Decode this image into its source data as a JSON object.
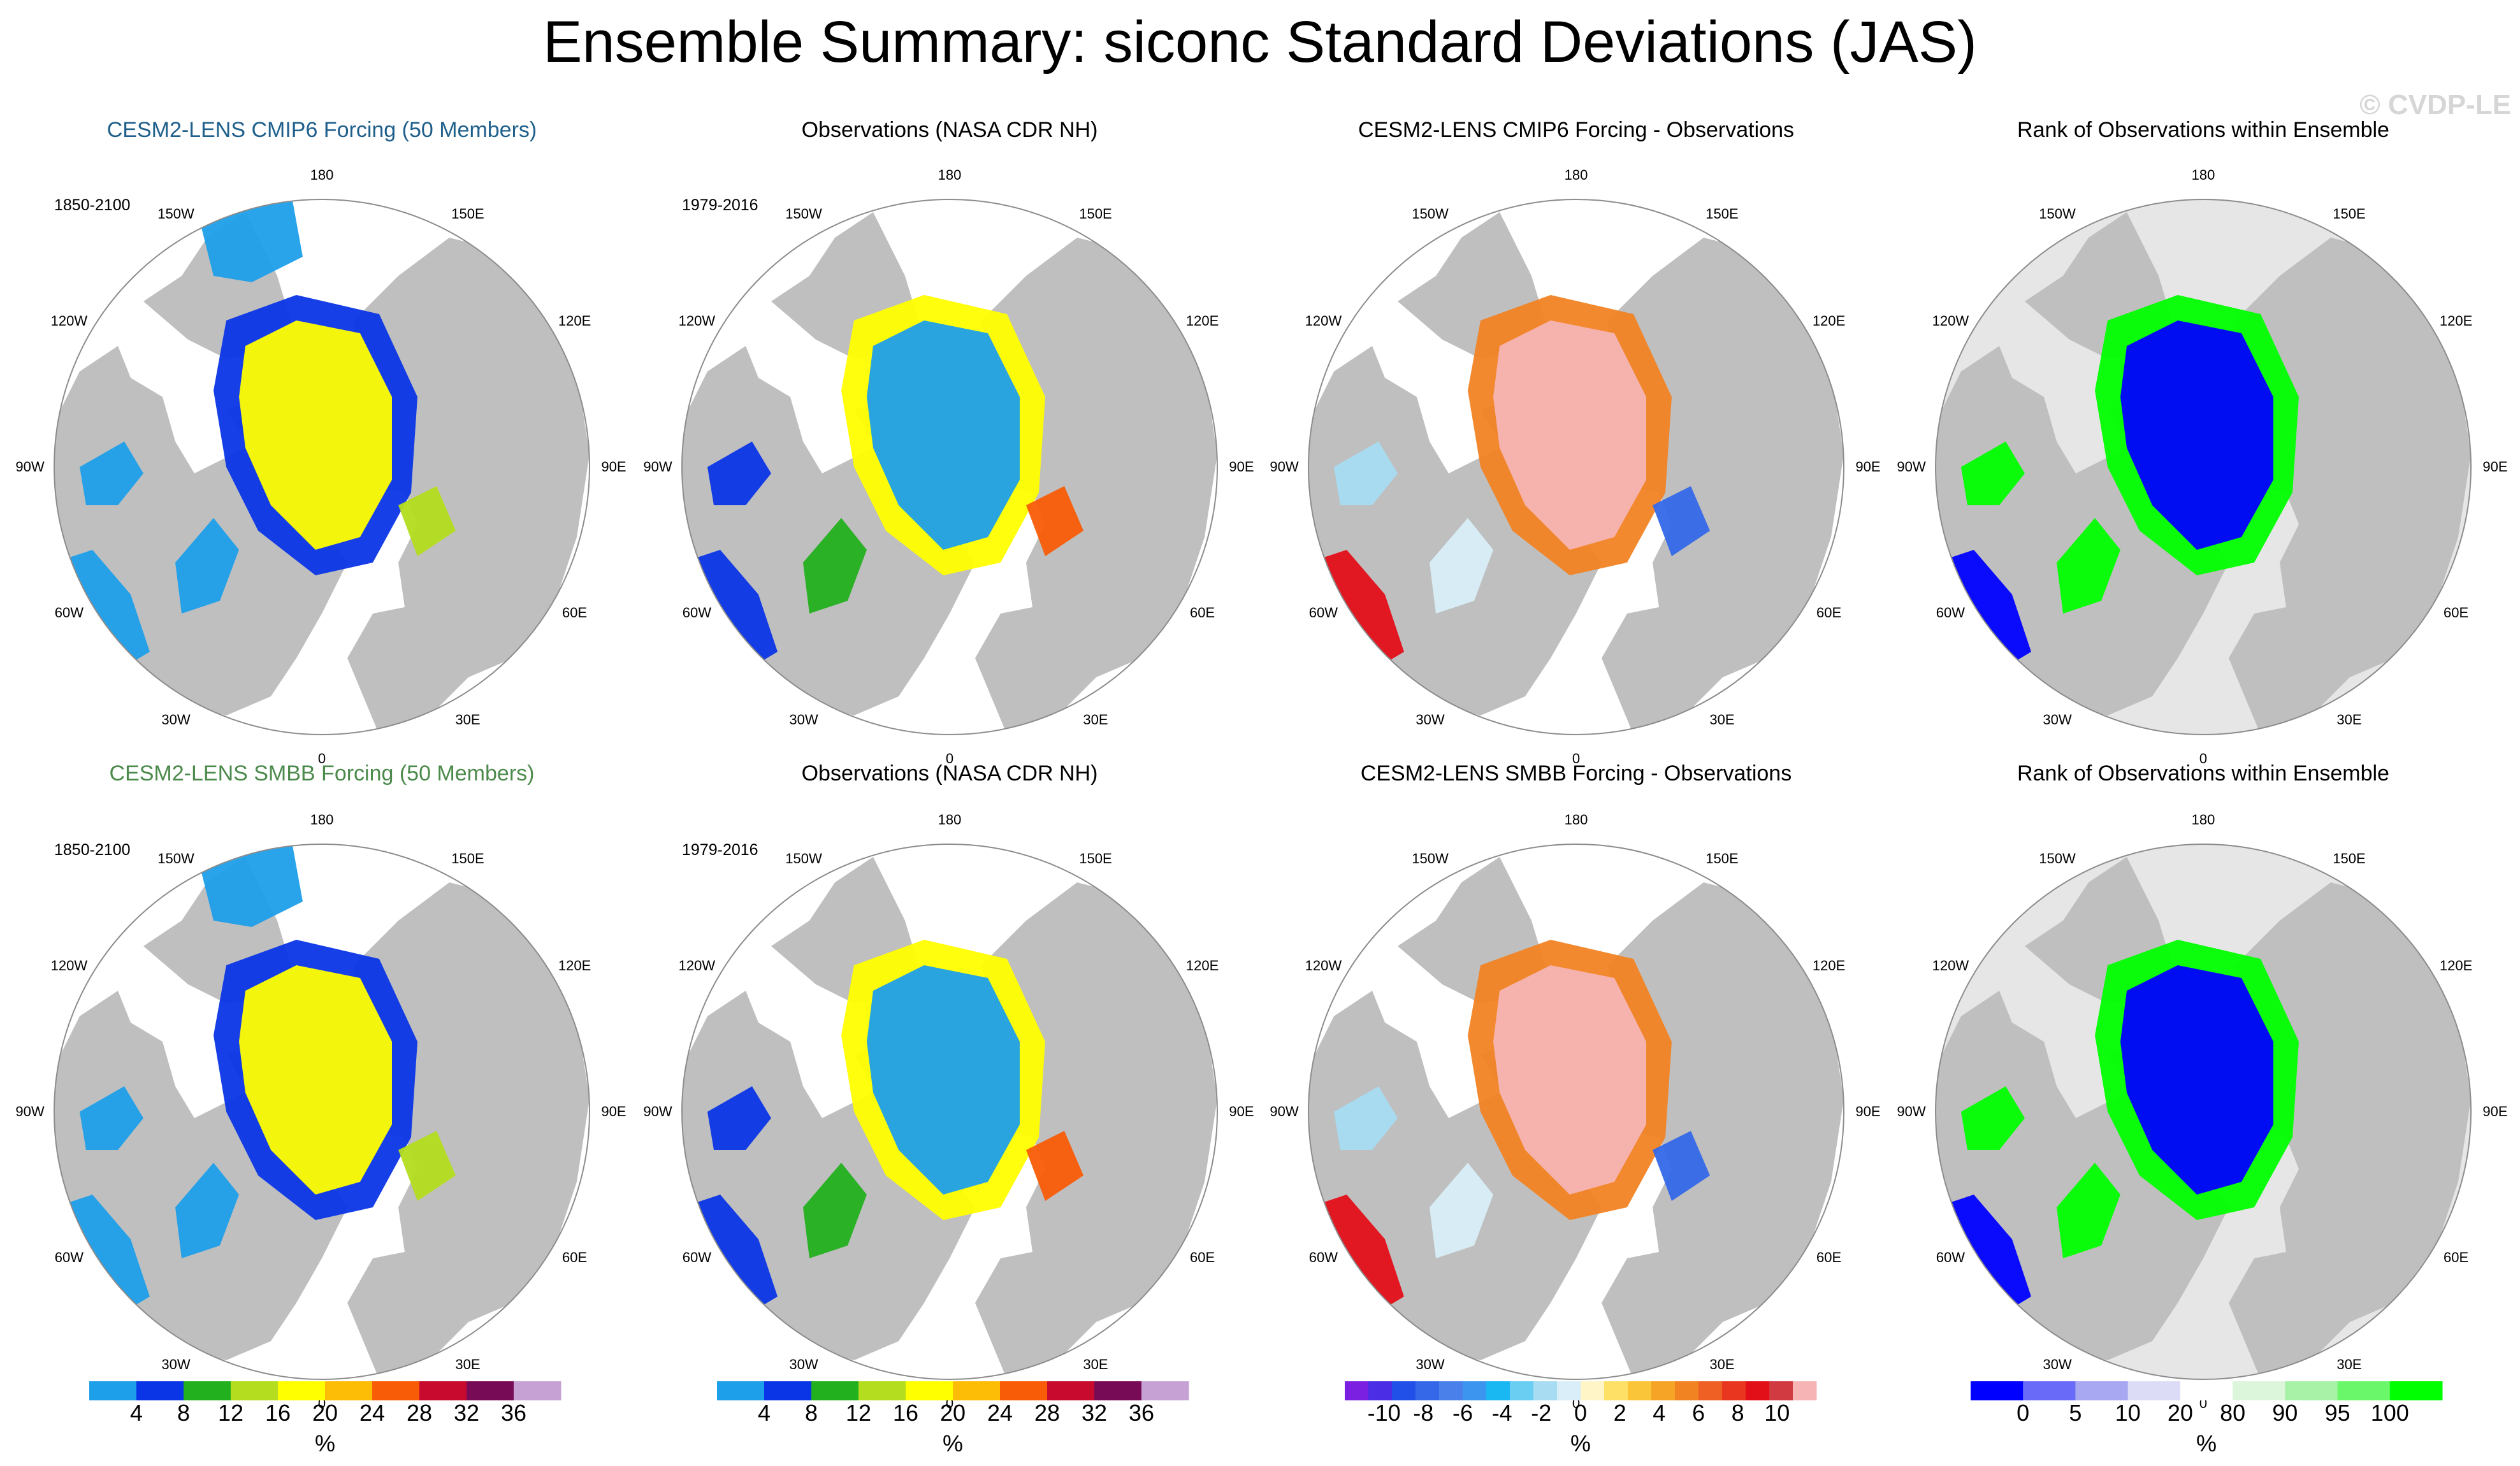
{
  "title": "Ensemble Summary: siconc Standard Deviations (JAS)",
  "watermark": "© CVDP-LE",
  "colors": {
    "land": "#bfbfbf",
    "ocean": "#ffffff",
    "frame": "#8c8c8c",
    "rank_background": "#e6e6e6",
    "title_row1_panel1": "#1f5f8b",
    "title_row2_panel1": "#4c8a4c"
  },
  "longitude_labels": [
    "180",
    "150E",
    "120E",
    "90E",
    "60E",
    "30E",
    "0",
    "30W",
    "60W",
    "90W",
    "120W",
    "150W"
  ],
  "panels": [
    {
      "title": "CESM2-LENS CMIP6 Forcing (50 Members)",
      "period": "1850-2100",
      "field": "model"
    },
    {
      "title": "Observations (NASA CDR NH)",
      "period": "1979-2016",
      "field": "obs"
    },
    {
      "title": "CESM2-LENS CMIP6 Forcing - Observations",
      "period": "",
      "field": "diff"
    },
    {
      "title": "Rank of Observations within Ensemble",
      "period": "",
      "field": "rank"
    },
    {
      "title": "CESM2-LENS SMBB Forcing (50 Members)",
      "period": "1850-2100",
      "field": "model"
    },
    {
      "title": "Observations (NASA CDR NH)",
      "period": "1979-2016",
      "field": "obs"
    },
    {
      "title": "CESM2-LENS SMBB Forcing - Observations",
      "period": "",
      "field": "diff"
    },
    {
      "title": "Rank of Observations within Ensemble",
      "period": "",
      "field": "rank"
    }
  ],
  "colorbars": [
    {
      "unit": "%",
      "labels": [
        "4",
        "8",
        "12",
        "16",
        "20",
        "24",
        "28",
        "32",
        "36"
      ],
      "colors": [
        "#1e9fea",
        "#0a35e6",
        "#22b01e",
        "#b3dd1e",
        "#ffff00",
        "#fdbd07",
        "#f85c06",
        "#c70a2d",
        "#780b56",
        "#c5a2d3"
      ]
    },
    {
      "unit": "%",
      "labels": [
        "4",
        "8",
        "12",
        "16",
        "20",
        "24",
        "28",
        "32",
        "36"
      ],
      "colors": [
        "#1e9fea",
        "#0a35e6",
        "#22b01e",
        "#b3dd1e",
        "#ffff00",
        "#fdbd07",
        "#f85c06",
        "#c70a2d",
        "#780b56",
        "#c5a2d3"
      ]
    },
    {
      "unit": "%",
      "labels": [
        "-10",
        "-8",
        "-6",
        "-4",
        "-2",
        "0",
        "2",
        "4",
        "6",
        "8",
        "10"
      ],
      "colors": [
        "#7b1fe0",
        "#4b2de6",
        "#2050e8",
        "#3468e8",
        "#4a80ea",
        "#3c95ee",
        "#1ab8f2",
        "#6acdf2",
        "#a7dcf2",
        "#d9eef8",
        "#fff5c6",
        "#ffe066",
        "#fbc53a",
        "#f6a426",
        "#f28323",
        "#ee6024",
        "#e9361f",
        "#e30f18",
        "#d13a40",
        "#f6b4b4"
      ]
    },
    {
      "unit": "%",
      "labels": [
        "0",
        "5",
        "10",
        "20",
        "80",
        "90",
        "95",
        "100"
      ],
      "colors": [
        "#0000ff",
        "#6a6af8",
        "#a8a8f2",
        "#dcdcf6",
        "#ffffff",
        "#dcf6dc",
        "#a8f2a8",
        "#6af86a",
        "#00ff00"
      ]
    }
  ],
  "chart_data": {
    "type": "polar-stereographic-maps",
    "variable": "siconc",
    "statistic": "Standard Deviations",
    "season": "JAS",
    "rows": [
      {
        "model": "CESM2-LENS CMIP6 Forcing",
        "members": 50
      },
      {
        "model": "CESM2-LENS SMBB Forcing",
        "members": 50
      }
    ],
    "model_period": "1850-2100",
    "obs_period": "1979-2016",
    "observations": "NASA CDR NH",
    "stddev_levels": [
      4,
      8,
      12,
      16,
      20,
      24,
      28,
      32,
      36
    ],
    "difference_levels": [
      -10,
      -8,
      -6,
      -4,
      -2,
      0,
      2,
      4,
      6,
      8,
      10
    ],
    "rank_levels": [
      0,
      5,
      10,
      20,
      80,
      90,
      95,
      100
    ],
    "unit": "%"
  }
}
